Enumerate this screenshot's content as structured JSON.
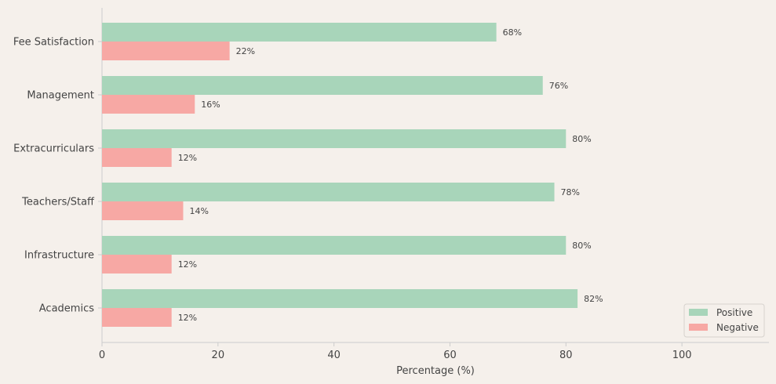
{
  "chart_data": {
    "type": "bar",
    "orientation": "horizontal",
    "categories": [
      "Academics",
      "Infrastructure",
      "Teachers/Staff",
      "Extracurriculars",
      "Management",
      "Fee Satisfaction"
    ],
    "series": [
      {
        "name": "Positive",
        "values": [
          82,
          80,
          78,
          80,
          76,
          68
        ],
        "color": "#a8d5ba"
      },
      {
        "name": "Negative",
        "values": [
          12,
          12,
          14,
          12,
          16,
          22
        ],
        "color": "#f7a8a4"
      }
    ],
    "value_suffix": "%",
    "xlabel": "Percentage (%)",
    "ylabel": "",
    "title": "",
    "xlim": [
      0,
      115
    ],
    "xticks": [
      0,
      20,
      40,
      60,
      80,
      100
    ],
    "grid": false,
    "legend_position": "bottom-right"
  }
}
